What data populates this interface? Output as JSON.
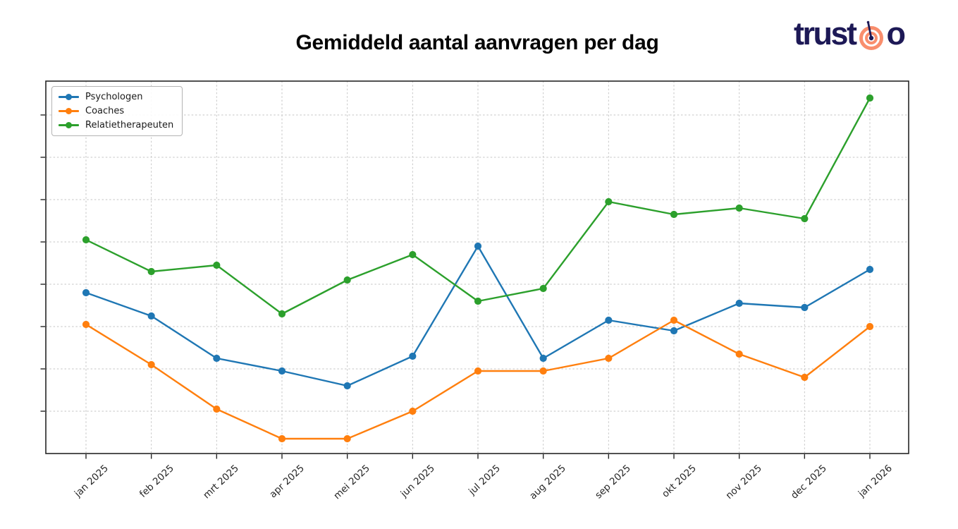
{
  "title": "Gemiddeld aantal aanvragen per dag",
  "logo": {
    "text_before": "trust",
    "text_after": "o",
    "navy": "#1d1956",
    "orange": "#f98e6d"
  },
  "chart_data": {
    "type": "line",
    "title": "Gemiddeld aantal aanvragen per dag",
    "categories": [
      "jan 2025",
      "feb 2025",
      "mrt 2025",
      "apr 2025",
      "mei 2025",
      "jun 2025",
      "jul 2025",
      "aug 2025",
      "sep 2025",
      "okt 2025",
      "nov 2025",
      "dec 2025",
      "jan 2026"
    ],
    "series": [
      {
        "name": "Psychologen",
        "color": "#1f77b4",
        "values": [
          3.8,
          3.25,
          2.25,
          1.95,
          1.6,
          2.3,
          4.9,
          2.25,
          3.15,
          2.9,
          3.55,
          3.45,
          4.35
        ]
      },
      {
        "name": "Coaches",
        "color": "#ff7f0e",
        "values": [
          3.05,
          2.1,
          1.05,
          0.35,
          0.35,
          1.0,
          1.95,
          1.95,
          2.25,
          3.15,
          2.35,
          1.8,
          3.0
        ]
      },
      {
        "name": "Relatietherapeuten",
        "color": "#2ca02c",
        "values": [
          5.05,
          4.3,
          4.45,
          3.3,
          4.1,
          4.7,
          3.6,
          3.9,
          5.95,
          5.65,
          5.8,
          5.55,
          8.4
        ]
      }
    ],
    "xlabel": "",
    "ylabel": "",
    "ylim": [
      0,
      8.8
    ],
    "y_gridline_step": 1,
    "y_tick_labels_visible": false,
    "grid": true,
    "legend_position": "upper-left",
    "grid_color": "#c6c6c6",
    "spine_color": "#262626"
  }
}
